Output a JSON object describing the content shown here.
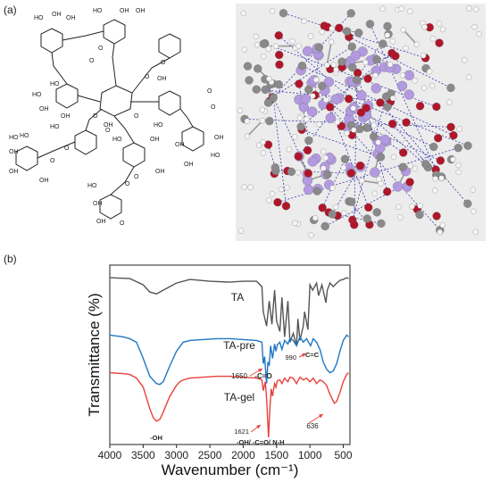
{
  "figure": {
    "panel_a_label": "(a)",
    "panel_b_label": "(b)"
  },
  "structure": {
    "groups": [
      "HO",
      "OH",
      "OH",
      "HO",
      "OH",
      "OH",
      "O",
      "O",
      "O",
      "O",
      "HO",
      "OH",
      "HO",
      "OH",
      "OH",
      "O",
      "O",
      "O",
      "O",
      "OH",
      "HO",
      "OH",
      "OH",
      "O",
      "O",
      "O",
      "HO",
      "OH",
      "OH",
      "HO",
      "OH",
      "HO",
      "OH",
      "OH",
      "O",
      "O",
      "HO",
      "OH",
      "OH",
      "O",
      "HO",
      "HO",
      "OH"
    ]
  },
  "chart_data": {
    "type": "line",
    "title": "",
    "xlabel": "Wavenumber (cm⁻¹)",
    "ylabel": "Transmittance (%)",
    "xlim": [
      4000,
      400
    ],
    "xticks": [
      4000,
      3500,
      3000,
      2500,
      2000,
      1500,
      1000,
      500
    ],
    "yticks_shown": false,
    "series": [
      {
        "name": "TA",
        "color": "#555555",
        "x": [
          4000,
          3700,
          3500,
          3400,
          3300,
          3200,
          3000,
          2800,
          2500,
          2200,
          2000,
          1800,
          1720,
          1700,
          1650,
          1610,
          1570,
          1530,
          1500,
          1450,
          1420,
          1380,
          1330,
          1300,
          1250,
          1200,
          1180,
          1150,
          1100,
          1080,
          1030,
          1000,
          960,
          900,
          870,
          820,
          760,
          740,
          700,
          650,
          600,
          550,
          500,
          450,
          420
        ],
        "y": [
          93,
          92.5,
          89,
          85,
          84,
          86,
          90,
          92,
          91,
          90.5,
          91,
          91,
          88,
          74,
          66,
          80,
          67,
          86,
          69,
          63,
          82,
          60,
          80,
          57,
          62,
          55,
          70,
          58,
          66,
          74,
          64,
          89,
          86,
          90,
          83,
          89,
          79,
          86,
          90,
          88,
          90,
          91.5,
          92,
          93,
          92.5
        ]
      },
      {
        "name": "TA-pre",
        "color": "#1f77c4",
        "x": [
          4000,
          3800,
          3700,
          3600,
          3500,
          3400,
          3300,
          3250,
          3200,
          3100,
          3000,
          2900,
          2800,
          2600,
          2400,
          2200,
          2000,
          1800,
          1720,
          1700,
          1680,
          1650,
          1630,
          1610,
          1590,
          1560,
          1530,
          1510,
          1490,
          1450,
          1420,
          1380,
          1330,
          1300,
          1250,
          1200,
          1150,
          1100,
          1050,
          990,
          950,
          900,
          850,
          800,
          750,
          700,
          650,
          600,
          550,
          500,
          450,
          420
        ],
        "y": [
          61,
          60,
          59,
          57,
          48,
          38,
          34,
          33.5,
          35,
          44,
          52,
          57,
          58,
          58.5,
          59,
          59,
          58.5,
          58,
          57,
          45,
          49,
          34,
          46,
          44,
          55,
          48,
          56,
          52,
          55.5,
          57,
          53,
          58,
          56,
          59,
          58,
          55,
          60,
          57,
          59,
          55,
          59,
          57,
          53,
          46,
          42,
          40,
          41,
          45,
          52,
          58,
          61,
          60
        ]
      },
      {
        "name": "TA-gel",
        "color": "#e8413c",
        "x": [
          4000,
          3800,
          3700,
          3600,
          3500,
          3400,
          3350,
          3300,
          3250,
          3200,
          3100,
          3000,
          2950,
          2900,
          2800,
          2600,
          2400,
          2200,
          2000,
          1800,
          1720,
          1700,
          1670,
          1650,
          1621,
          1600,
          1580,
          1560,
          1530,
          1510,
          1490,
          1450,
          1420,
          1380,
          1330,
          1300,
          1250,
          1200,
          1150,
          1100,
          1050,
          1000,
          950,
          900,
          850,
          800,
          750,
          700,
          636,
          600,
          550,
          500,
          450,
          420
        ],
        "y": [
          40,
          39.5,
          39,
          37,
          32,
          20,
          15,
          13,
          14,
          18,
          27,
          33,
          35,
          36,
          37,
          37.5,
          38,
          38,
          37.5,
          37,
          36,
          30,
          35,
          26,
          4,
          20,
          31,
          27,
          34,
          32,
          35.5,
          36,
          34,
          37,
          35,
          37.5,
          37,
          34,
          37.5,
          36,
          37,
          35,
          37,
          34,
          36,
          35,
          33,
          28,
          23,
          24,
          29,
          35,
          39,
          40
        ]
      }
    ],
    "series_labels": [
      "TA",
      "TA-pre",
      "TA-gel"
    ],
    "annotations": [
      {
        "text": "1650",
        "series": "TA-pre",
        "x": 1650
      },
      {
        "text": "-C=O",
        "series": "TA-pre",
        "x": 1650
      },
      {
        "text": "990",
        "series": "TA-pre",
        "x": 990
      },
      {
        "text": "C=C",
        "series": "TA-pre",
        "x": 990
      },
      {
        "text": "-OH",
        "series": "TA-gel",
        "x": 3300
      },
      {
        "text": "1621",
        "series": "TA-gel",
        "x": 1621
      },
      {
        "text": "-OH/ -C=O/ N-H",
        "series": "TA-gel",
        "x": 1621
      },
      {
        "text": "636",
        "series": "TA-gel",
        "x": 636
      }
    ]
  }
}
